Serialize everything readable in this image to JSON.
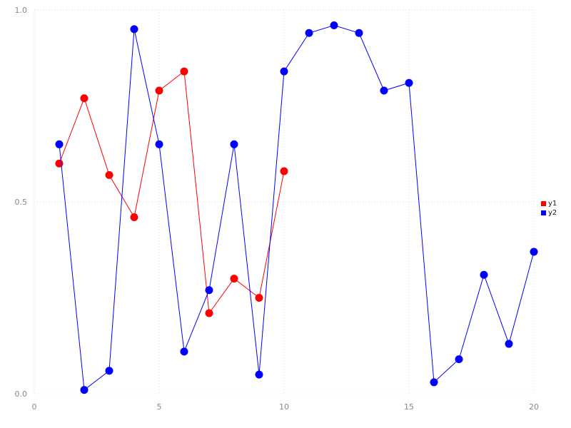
{
  "chart_data": {
    "type": "line",
    "title": "",
    "xlabel": "",
    "ylabel": "",
    "xlim": [
      0,
      20
    ],
    "ylim": [
      0.0,
      1.0
    ],
    "xticks": [
      0,
      5,
      10,
      15,
      20
    ],
    "xtick_labels": [
      "0",
      "5",
      "10",
      "15",
      "20"
    ],
    "yticks": [
      0.0,
      0.5,
      1.0
    ],
    "ytick_labels": [
      "0.0",
      "0.5",
      "1.0"
    ],
    "grid": "dotted",
    "grid_color": "#dddddd",
    "legend_position": "right-center",
    "marker": "circle",
    "series": [
      {
        "name": "y1",
        "color": "#ff0000",
        "x": [
          1,
          2,
          3,
          4,
          5,
          6,
          7,
          8,
          9,
          10
        ],
        "y": [
          0.6,
          0.77,
          0.57,
          0.46,
          0.79,
          0.84,
          0.21,
          0.3,
          0.25,
          0.58
        ]
      },
      {
        "name": "y2",
        "color": "#0000ff",
        "x": [
          1,
          2,
          3,
          4,
          5,
          6,
          7,
          8,
          9,
          10,
          11,
          12,
          13,
          14,
          15,
          16,
          17,
          18,
          19,
          20
        ],
        "y": [
          0.65,
          0.01,
          0.06,
          0.95,
          0.65,
          0.11,
          0.27,
          0.65,
          0.05,
          0.84,
          0.94,
          0.96,
          0.94,
          0.79,
          0.81,
          0.03,
          0.09,
          0.31,
          0.13,
          0.37
        ]
      }
    ]
  }
}
